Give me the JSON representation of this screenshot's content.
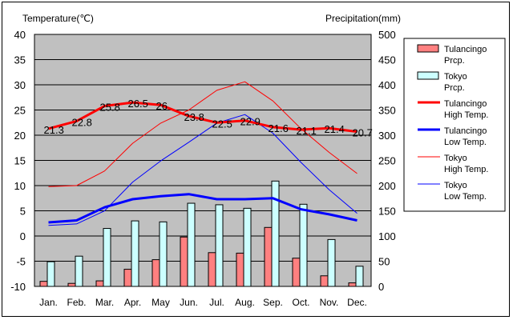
{
  "chart_data": {
    "type": "bar+line",
    "left_axis_title": "Temperature(℃)",
    "right_axis_title": "Precipitation(mm)",
    "left_ylim": [
      -10,
      40
    ],
    "left_ticks": [
      "40",
      "35",
      "30",
      "25",
      "20",
      "15",
      "10",
      "5",
      "0",
      "-5",
      "-10"
    ],
    "right_ylim": [
      0,
      500
    ],
    "right_ticks": [
      "500",
      "450",
      "400",
      "350",
      "300",
      "250",
      "200",
      "150",
      "100",
      "50",
      "0"
    ],
    "categories": [
      "Jan.",
      "Feb.",
      "Mar.",
      "Apr.",
      "May",
      "Jun.",
      "Jul.",
      "Aug.",
      "Sep.",
      "Oct.",
      "Nov.",
      "Dec."
    ],
    "grid": true,
    "legend_position": "right",
    "bar_series": [
      {
        "name": "Tulancingo Prcp.",
        "legend": [
          "Tulancingo",
          "Prcp."
        ],
        "color": "#ff8080",
        "values": [
          10,
          6,
          11,
          34,
          53,
          98,
          67,
          66,
          117,
          56,
          21,
          7
        ]
      },
      {
        "name": "Tokyo Prcp.",
        "legend": [
          "Tokyo",
          "Prcp."
        ],
        "color": "#ccffff",
        "values": [
          49,
          60,
          115,
          130,
          128,
          165,
          162,
          155,
          209,
          163,
          93,
          40
        ]
      }
    ],
    "line_series": [
      {
        "name": "Tulancingo High Temp.",
        "legend": [
          "Tulancingo",
          "High Temp."
        ],
        "color": "#ff0000",
        "width": 3,
        "values": [
          21.3,
          22.8,
          25.8,
          26.5,
          26,
          23.8,
          22.5,
          22.9,
          21.6,
          21.1,
          21.4,
          20.7
        ],
        "labels": [
          "21.3",
          "22.8",
          "25.8",
          "26.5",
          "26",
          "23.8",
          "22.5",
          "22.9",
          "21.6",
          "21.1",
          "21.4",
          "20.7"
        ]
      },
      {
        "name": "Tulancingo Low Temp.",
        "legend": [
          "Tulancingo",
          "Low Temp."
        ],
        "color": "#0000ff",
        "width": 3,
        "values": [
          2.7,
          3.1,
          5.7,
          7.3,
          7.9,
          8.3,
          7.3,
          7.3,
          7.5,
          5.3,
          4.3,
          3.1
        ]
      },
      {
        "name": "Tokyo High Temp.",
        "legend": [
          "Tokyo",
          "High Temp."
        ],
        "color": "#ff0000",
        "width": 1,
        "values": [
          9.8,
          10,
          12.9,
          18.4,
          22.4,
          25,
          28.9,
          30.6,
          26.8,
          21.3,
          16.6,
          12.4
        ]
      },
      {
        "name": "Tokyo Low Temp.",
        "legend": [
          "Tokyo",
          "Low Temp."
        ],
        "color": "#0000ff",
        "width": 1,
        "values": [
          2.1,
          2.4,
          5,
          10.7,
          14.9,
          18.6,
          22.4,
          24.1,
          20.4,
          14.6,
          9.2,
          4.5
        ]
      }
    ]
  }
}
